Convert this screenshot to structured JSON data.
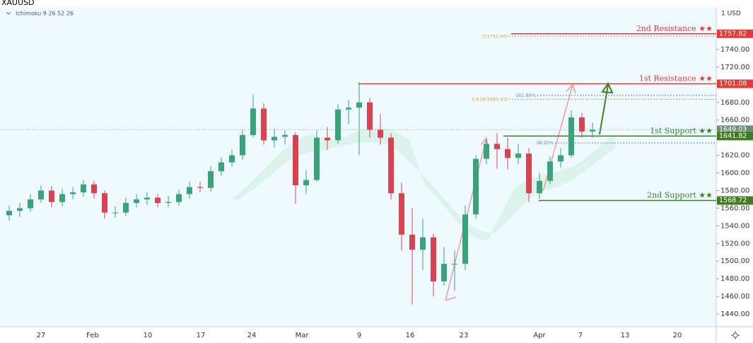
{
  "chart_data": {
    "type": "candlestick",
    "title": "XAUUSD",
    "indicator": "Ichimoku 9 26 52 26",
    "currency": "1 USD",
    "up_color": "#3aa37a",
    "down_color": "#d9434f",
    "ylim": [
      1425.6,
      1788.1
    ],
    "yticks": [
      {
        "value": 1440,
        "label": "1440.00"
      },
      {
        "value": 1460,
        "label": "1460.00"
      },
      {
        "value": 1480,
        "label": "1480.00"
      },
      {
        "value": 1500,
        "label": "1500.00"
      },
      {
        "value": 1520,
        "label": "1520.00"
      },
      {
        "value": 1540,
        "label": "1540.00"
      },
      {
        "value": 1560,
        "label": "1560.00"
      },
      {
        "value": 1580,
        "label": "1580.00"
      },
      {
        "value": 1600,
        "label": "1600.00"
      },
      {
        "value": 1620,
        "label": "1620.00"
      },
      {
        "value": 1660,
        "label": "1660.00"
      },
      {
        "value": 1680,
        "label": "1680.00"
      },
      {
        "value": 1720,
        "label": "1720.00"
      },
      {
        "value": 1740,
        "label": "1740.00"
      }
    ],
    "xtick_labels": [
      "27",
      "Feb",
      "10",
      "17",
      "24",
      "Mar",
      "9",
      "16",
      "23",
      "Apr",
      "7",
      "13",
      "20"
    ],
    "open": [
      1552,
      1557,
      1560,
      1570,
      1580,
      1567,
      1576,
      1578,
      1587,
      1577,
      1555,
      1555,
      1566,
      1570,
      1572,
      1566,
      1567,
      1576,
      1584,
      1583,
      1602,
      1612,
      1620,
      1643,
      1673,
      1637,
      1641,
      1643,
      1586,
      1592,
      1640,
      1637,
      1672,
      1674,
      1680,
      1649,
      1640,
      1577,
      1530,
      1513,
      1527,
      1477,
      1497,
      1497,
      1553,
      1616,
      1633,
      1627,
      1617,
      1622,
      1577,
      1591,
      1613,
      1620,
      1663,
      1647
    ],
    "high": [
      1563,
      1566,
      1576,
      1586,
      1585,
      1582,
      1584,
      1592,
      1591,
      1580,
      1562,
      1572,
      1576,
      1578,
      1576,
      1574,
      1581,
      1590,
      1590,
      1608,
      1618,
      1626,
      1649,
      1689,
      1679,
      1650,
      1648,
      1646,
      1603,
      1648,
      1652,
      1678,
      1683,
      1703,
      1685,
      1667,
      1645,
      1589,
      1560,
      1548,
      1531,
      1516,
      1512,
      1563,
      1620,
      1638,
      1645,
      1640,
      1633,
      1628,
      1600,
      1619,
      1628,
      1671,
      1668,
      1657
    ],
    "low": [
      1546,
      1550,
      1556,
      1566,
      1561,
      1562,
      1570,
      1573,
      1571,
      1548,
      1549,
      1551,
      1561,
      1564,
      1561,
      1561,
      1563,
      1571,
      1578,
      1579,
      1597,
      1607,
      1615,
      1640,
      1632,
      1629,
      1632,
      1565,
      1576,
      1590,
      1626,
      1633,
      1655,
      1620,
      1640,
      1632,
      1570,
      1512,
      1451,
      1490,
      1460,
      1472,
      1466,
      1490,
      1548,
      1610,
      1605,
      1604,
      1610,
      1567,
      1571,
      1587,
      1606,
      1617,
      1640,
      1640
    ],
    "close": [
      1557,
      1560,
      1570,
      1580,
      1567,
      1576,
      1578,
      1587,
      1577,
      1555,
      1555,
      1566,
      1570,
      1572,
      1566,
      1567,
      1576,
      1584,
      1583,
      1602,
      1612,
      1620,
      1643,
      1673,
      1637,
      1641,
      1643,
      1586,
      1592,
      1640,
      1637,
      1672,
      1674,
      1680,
      1649,
      1640,
      1577,
      1530,
      1513,
      1527,
      1477,
      1497,
      1497,
      1553,
      1616,
      1633,
      1627,
      1617,
      1622,
      1577,
      1591,
      1613,
      1620,
      1663,
      1647,
      1649
    ],
    "last_price": 1649.03,
    "levels": [
      {
        "label": "2nd Resistance ★★",
        "value": 1757.82,
        "color": "#e53935"
      },
      {
        "label": "1st Resistance ★★",
        "value": 1701.08,
        "color": "#e53935"
      },
      {
        "label": "1st Support ★★",
        "value": 1641.82,
        "color": "#3f7d20"
      },
      {
        "label": "2nd Support ★★",
        "value": 1568.72,
        "color": "#3f7d20"
      }
    ],
    "fib_levels": [
      {
        "label": "1(1755.00)",
        "value": 1755,
        "color": "#e0a030"
      },
      {
        "label": "161.80%",
        "value": 1688,
        "color": "#4a90d9"
      },
      {
        "label": "0.618(1683.43)",
        "value": 1683.43,
        "color": "#e0a030"
      },
      {
        "label": "38.20%",
        "value": 1634,
        "color": "#4a90d9"
      }
    ]
  }
}
